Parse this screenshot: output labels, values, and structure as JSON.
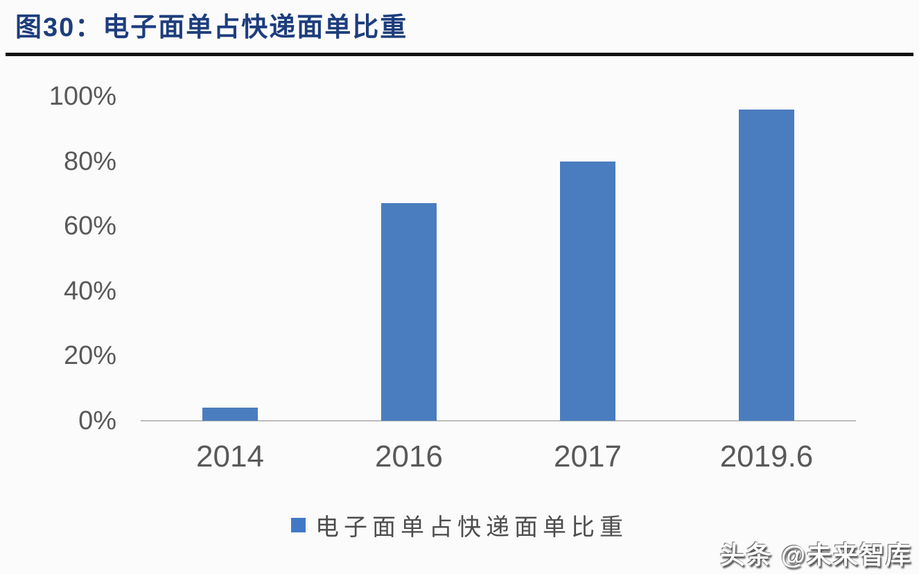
{
  "header": {
    "title": "图30：电子面单占快递面单比重"
  },
  "chart_data": {
    "type": "bar",
    "categories": [
      "2014",
      "2016",
      "2017",
      "2019.6"
    ],
    "values": [
      4,
      67,
      80,
      96
    ],
    "title": "图30：电子面单占快递面单比重",
    "xlabel": "",
    "ylabel": "",
    "ylim": [
      0,
      100
    ],
    "ytick_labels": [
      "0%",
      "20%",
      "40%",
      "60%",
      "80%",
      "100%"
    ],
    "ytick_values": [
      0,
      20,
      40,
      60,
      80,
      100
    ],
    "grid": false,
    "legend_position": "bottom",
    "legend_entries": [
      "电子面单占快递面单比重"
    ],
    "bar_color": "#4a7dbf"
  },
  "legend": {
    "label": "电子面单占快递面单比重",
    "marker_color": "#4179c6"
  },
  "watermark": {
    "text": "头条 @未来智库"
  },
  "colors": {
    "title_text": "#1d3d7d",
    "divider": "#101010",
    "axis_text": "#595959",
    "baseline": "#bdbdbd",
    "bar": "#4a7dbf"
  }
}
